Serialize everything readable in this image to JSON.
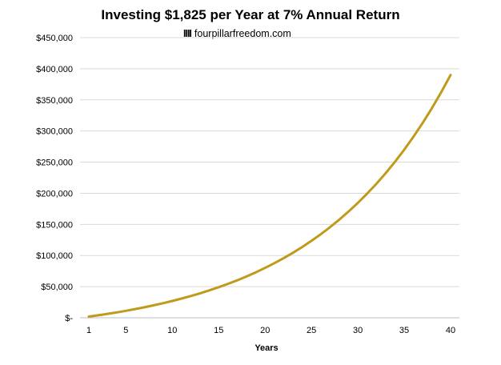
{
  "chart_data": {
    "type": "line",
    "title": "Investing $1,825 per Year at 7% Annual Return",
    "watermark": {
      "logo": "IIII",
      "text": "fourpillarfreedom.com"
    },
    "xlabel": "Years",
    "ylabel": "",
    "xlim": [
      1,
      40
    ],
    "ylim": [
      0,
      450000
    ],
    "x_ticks": [
      1,
      5,
      10,
      15,
      20,
      25,
      30,
      35,
      40
    ],
    "y_ticks": [
      0,
      50000,
      100000,
      150000,
      200000,
      250000,
      300000,
      350000,
      400000,
      450000
    ],
    "y_tick_labels": [
      "$-",
      "$50,000",
      "$100,000",
      "$150,000",
      "$200,000",
      "$250,000",
      "$300,000",
      "$350,000",
      "$400,000",
      "$450,000"
    ],
    "grid": true,
    "legend": "none",
    "line_color": "#C09A1A",
    "series": [
      {
        "x": [
          1,
          2,
          3,
          4,
          5,
          6,
          7,
          8,
          9,
          10,
          11,
          12,
          13,
          14,
          15,
          16,
          17,
          18,
          19,
          20,
          21,
          22,
          23,
          24,
          25,
          26,
          27,
          28,
          29,
          30,
          31,
          32,
          33,
          34,
          35,
          36,
          37,
          38,
          39,
          40
        ],
        "values": [
          1953,
          4042,
          6278,
          8671,
          11231,
          13970,
          16901,
          20037,
          23393,
          26983,
          30825,
          34936,
          39335,
          44042,
          49078,
          54467,
          60233,
          66403,
          73004,
          80067,
          87625,
          95712,
          104365,
          113624,
          123531,
          134132,
          145474,
          157611,
          170597,
          184491,
          199358,
          215266,
          232288,
          250501,
          269988,
          290840,
          313152,
          337025,
          362569,
          389902
        ]
      }
    ]
  }
}
